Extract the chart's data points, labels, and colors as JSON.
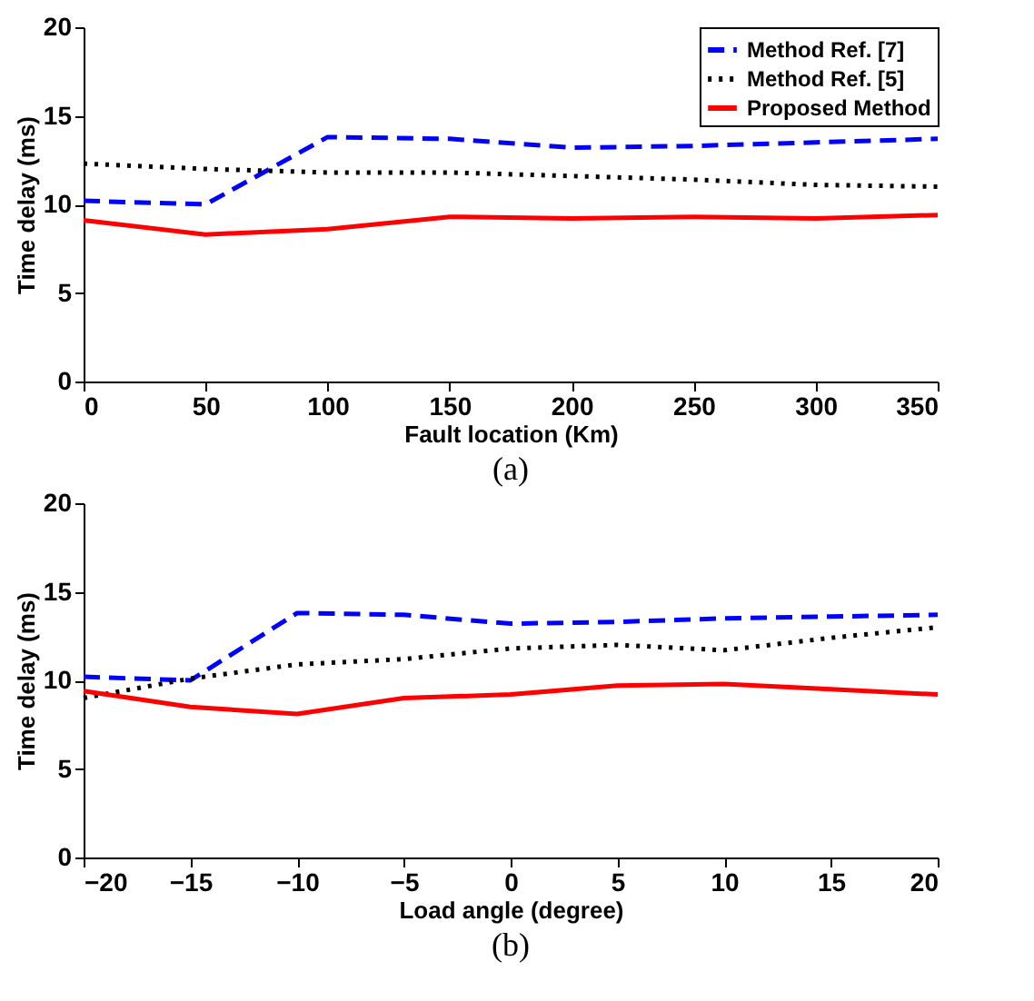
{
  "chart_data": [
    {
      "type": "line",
      "xlabel": "Fault location (Km)",
      "ylabel": "Time delay (ms)",
      "annotations": [
        "(a)"
      ],
      "x": [
        0,
        50,
        100,
        150,
        200,
        250,
        300,
        350
      ],
      "xlim": [
        0,
        350
      ],
      "xticks": [
        0,
        50,
        100,
        150,
        200,
        250,
        300,
        350
      ],
      "ylim": [
        0,
        20
      ],
      "yticks": [
        0,
        5,
        10,
        15,
        20
      ],
      "legend": "top right",
      "grid": false,
      "series": [
        {
          "name": "Method Ref. [7]",
          "color": "#0000ff",
          "line_style": "dashed",
          "values": [
            10.2,
            10.0,
            13.8,
            13.7,
            13.2,
            13.3,
            13.5,
            13.7
          ]
        },
        {
          "name": "Method Ref. [5]",
          "color": "#000000",
          "line_style": "dotted",
          "values": [
            12.3,
            12.0,
            11.8,
            11.8,
            11.6,
            11.4,
            11.1,
            11.0
          ]
        },
        {
          "name": "Proposed Method",
          "color": "#ff0000",
          "line_style": "solid",
          "values": [
            9.1,
            8.3,
            8.6,
            9.3,
            9.2,
            9.3,
            9.2,
            9.4
          ]
        }
      ]
    },
    {
      "type": "line",
      "xlabel": "Load angle (degree)",
      "ylabel": "Time delay (ms)",
      "annotations": [
        "(b)"
      ],
      "x": [
        -20,
        -15,
        -10,
        -5,
        0,
        5,
        10,
        15,
        20
      ],
      "xlim": [
        -20,
        20
      ],
      "xticks": [
        -20,
        -15,
        -10,
        -5,
        0,
        5,
        10,
        15,
        20
      ],
      "ylim": [
        0,
        20
      ],
      "yticks": [
        0,
        5,
        10,
        15,
        20
      ],
      "legend": "top right",
      "grid": false,
      "series": [
        {
          "name": "Method Ref. [7]",
          "color": "#0000ff",
          "line_style": "dashed",
          "values": [
            10.2,
            10.0,
            13.8,
            13.7,
            13.2,
            13.3,
            13.5,
            13.6,
            13.7
          ]
        },
        {
          "name": "Method Ref. [5]",
          "color": "#000000",
          "line_style": "dotted",
          "values": [
            9.0,
            10.1,
            10.9,
            11.2,
            11.8,
            12.0,
            11.7,
            12.4,
            13.0
          ]
        },
        {
          "name": "Proposed Method",
          "color": "#ff0000",
          "line_style": "solid",
          "values": [
            9.4,
            8.5,
            8.1,
            9.0,
            9.2,
            9.7,
            9.8,
            9.5,
            9.2
          ]
        }
      ]
    }
  ]
}
